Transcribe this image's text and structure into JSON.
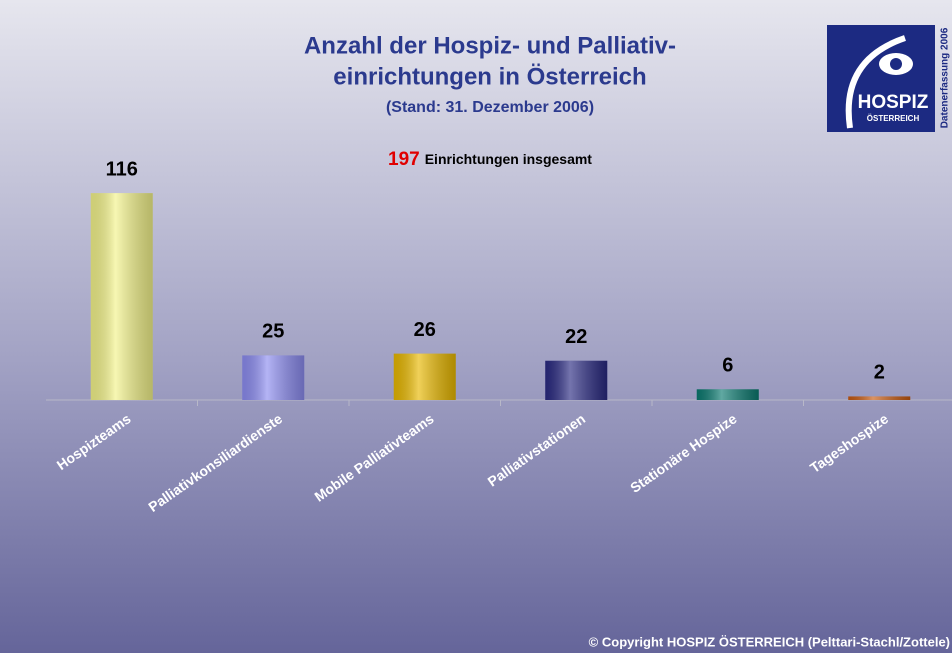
{
  "chart_data": {
    "type": "bar",
    "title": [
      "Anzahl der Hospiz- und Palliativ-",
      "einrichtungen in Österreich"
    ],
    "subtitle": "(Stand: 31. Dezember 2006)",
    "annotation": {
      "total": 197,
      "text": "Einrichtungen insgesamt"
    },
    "logo": {
      "name": "HOSPIZ",
      "country": "ÖSTERREICH",
      "side_text": "Datenerfassung 2006"
    },
    "copyright": "© Copyright HOSPIZ ÖSTERREICH (Pelttari-Stachl/Zottele)",
    "categories": [
      "Hospizteams",
      "Palliativkonsiliardienste",
      "Mobile Palliativteams",
      "Palliativstationen",
      "Stationäre Hospize",
      "Tageshospize"
    ],
    "values": [
      116,
      25,
      26,
      22,
      6,
      2
    ],
    "colors": [
      "#f3f38a",
      "#8c8cf0",
      "#e8b800",
      "#2a2a82",
      "#0b7a70",
      "#c85a10"
    ],
    "ylim": [
      0,
      120
    ]
  }
}
